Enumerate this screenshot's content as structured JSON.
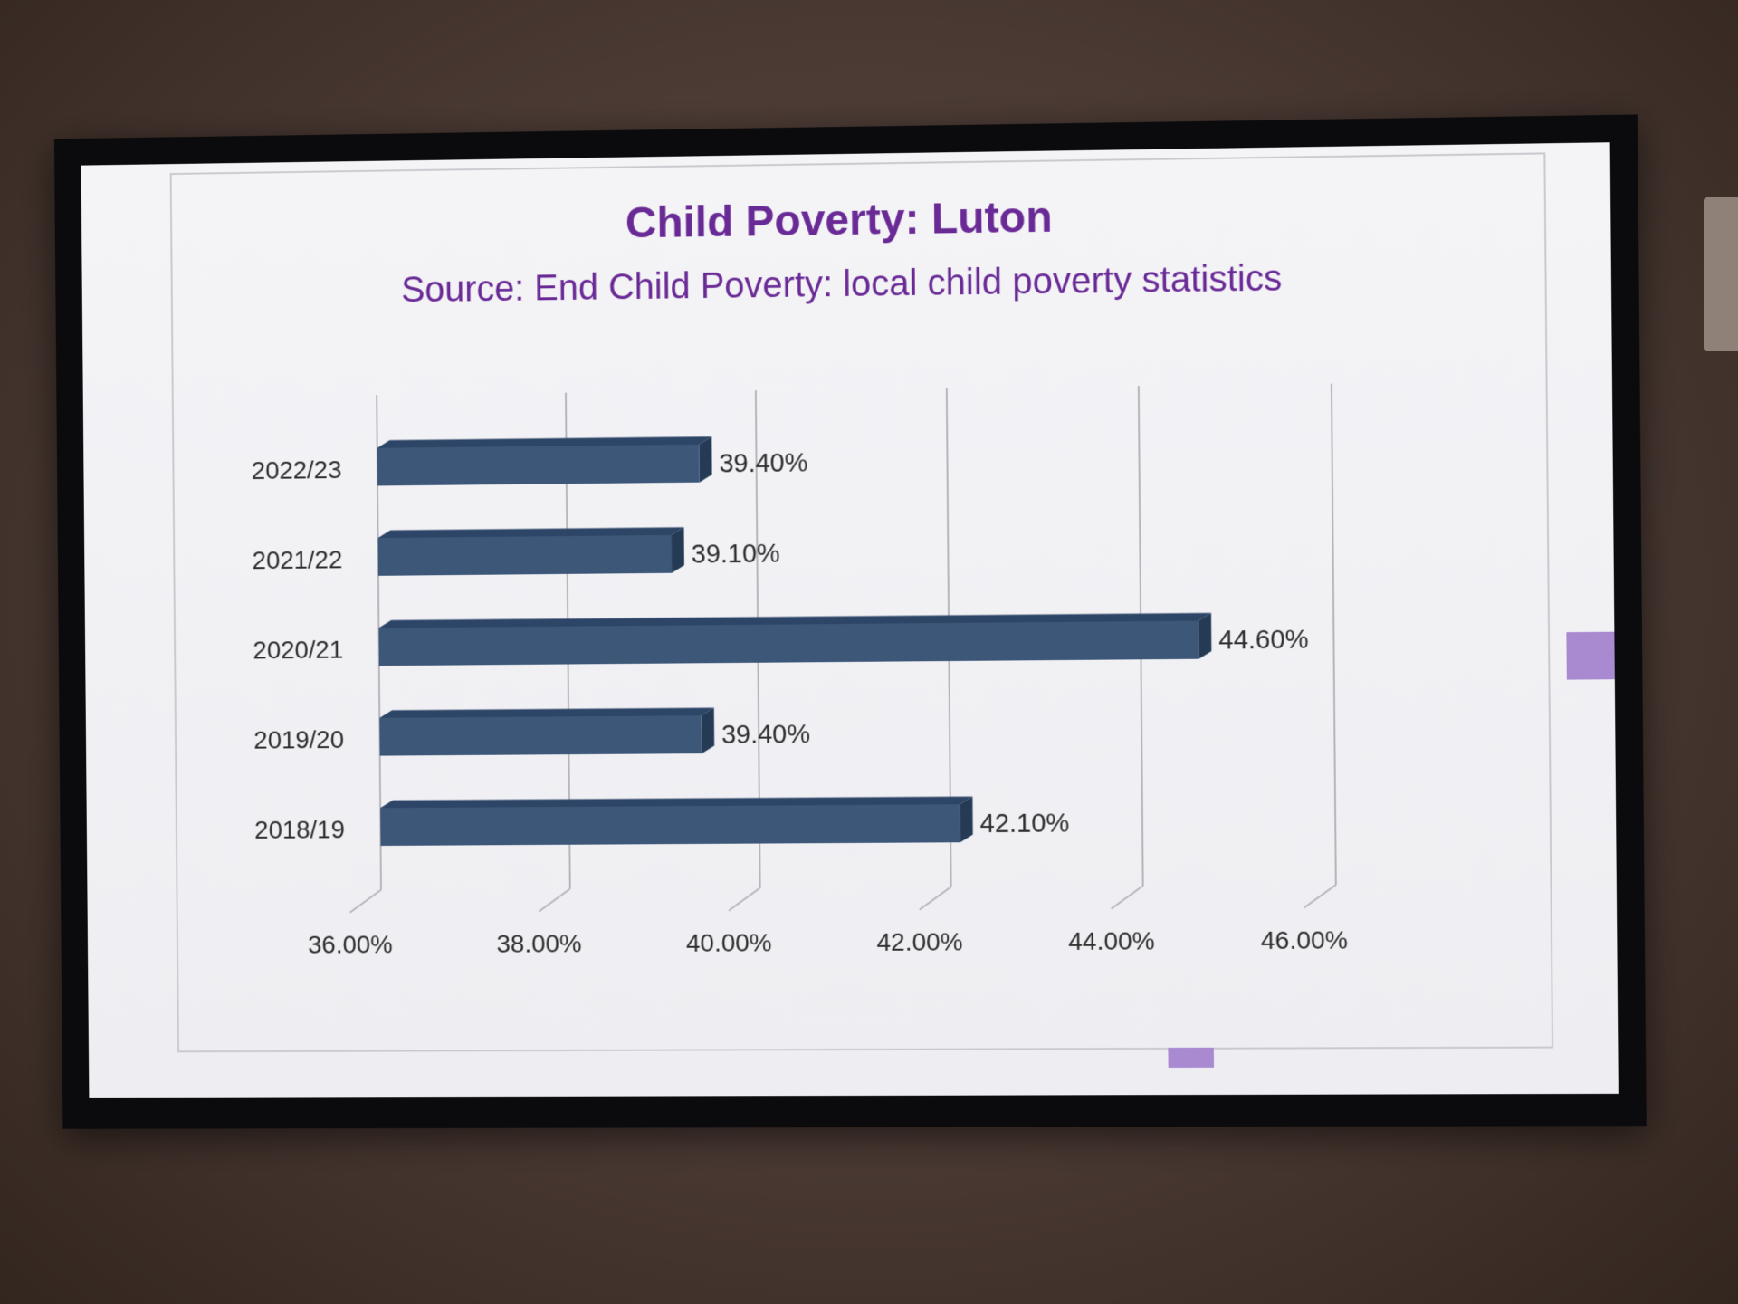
{
  "chart_data": {
    "type": "bar",
    "orientation": "horizontal",
    "title": "Child Poverty: Luton",
    "subtitle": "Source: End Child Poverty: local child poverty statistics",
    "categories": [
      "2022/23",
      "2021/22",
      "2020/21",
      "2019/20",
      "2018/19"
    ],
    "values": [
      39.4,
      39.1,
      44.6,
      39.4,
      42.1
    ],
    "data_labels": [
      "39.40%",
      "39.10%",
      "44.60%",
      "39.40%",
      "42.10%"
    ],
    "xlim": [
      36,
      46
    ],
    "x_ticks": [
      36,
      38,
      40,
      42,
      44,
      46
    ],
    "x_tick_labels": [
      "36.00%",
      "38.00%",
      "40.00%",
      "42.00%",
      "44.00%",
      "46.00%"
    ],
    "grid": true,
    "legend": "none",
    "bar_color": "#3c5778",
    "bar_side_color": "#243a55",
    "bar_top_color": "#2d4566",
    "title_color": "#6a2a96"
  }
}
